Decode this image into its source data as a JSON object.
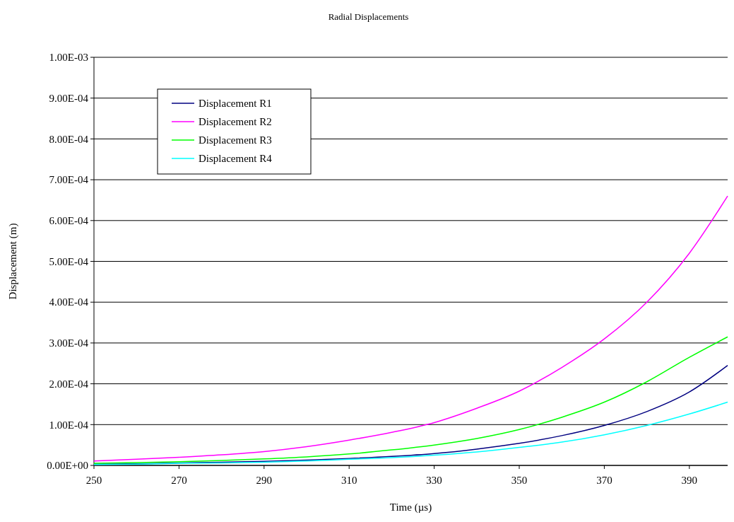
{
  "chart_data": {
    "type": "line",
    "title": "Radial Displacements",
    "xlabel": "Time (µs)",
    "ylabel": "Displacement (m)",
    "x": [
      250,
      260,
      270,
      280,
      290,
      300,
      310,
      320,
      330,
      340,
      350,
      360,
      370,
      380,
      390,
      399
    ],
    "series": [
      {
        "name": "Displacement R1",
        "color": "#000080",
        "values": [
          3e-06,
          4e-06,
          6e-06,
          8e-06,
          1e-05,
          1.3e-05,
          1.7e-05,
          2.2e-05,
          2.9e-05,
          4e-05,
          5.4e-05,
          7.3e-05,
          9.8e-05,
          0.000132,
          0.00018,
          0.000245
        ]
      },
      {
        "name": "Displacement R2",
        "color": "#ff00ff",
        "values": [
          1.1e-05,
          1.5e-05,
          2e-05,
          2.6e-05,
          3.4e-05,
          4.6e-05,
          6.2e-05,
          8.1e-05,
          0.000105,
          0.00014,
          0.000182,
          0.00024,
          0.00031,
          0.0004,
          0.00052,
          0.00066
        ]
      },
      {
        "name": "Displacement R3",
        "color": "#00ff00",
        "values": [
          5e-06,
          7e-06,
          9e-06,
          1.2e-05,
          1.6e-05,
          2.1e-05,
          2.8e-05,
          3.8e-05,
          5e-05,
          6.6e-05,
          8.8e-05,
          0.000118,
          0.000155,
          0.000205,
          0.000265,
          0.000315
        ]
      },
      {
        "name": "Displacement R4",
        "color": "#00ffff",
        "values": [
          2e-06,
          3e-06,
          5e-06,
          6e-06,
          8e-06,
          1.1e-05,
          1.5e-05,
          1.9e-05,
          2.5e-05,
          3.3e-05,
          4.4e-05,
          5.7e-05,
          7.5e-05,
          9.8e-05,
          0.000126,
          0.000155
        ]
      }
    ],
    "xlim": [
      250,
      399
    ],
    "xticks": [
      250,
      270,
      290,
      310,
      330,
      350,
      370,
      390
    ],
    "ylim": [
      0,
      0.001
    ],
    "yticks": [
      {
        "value": 0,
        "label": "0.00E+00"
      },
      {
        "value": 0.0001,
        "label": "1.00E-04"
      },
      {
        "value": 0.0002,
        "label": "2.00E-04"
      },
      {
        "value": 0.0003,
        "label": "3.00E-04"
      },
      {
        "value": 0.0004,
        "label": "4.00E-04"
      },
      {
        "value": 0.0005,
        "label": "5.00E-04"
      },
      {
        "value": 0.0006,
        "label": "6.00E-04"
      },
      {
        "value": 0.0007,
        "label": "7.00E-04"
      },
      {
        "value": 0.0008,
        "label": "8.00E-04"
      },
      {
        "value": 0.0009,
        "label": "9.00E-04"
      },
      {
        "value": 0.001,
        "label": "1.00E-03"
      }
    ],
    "grid": "y",
    "legend": "top left"
  }
}
